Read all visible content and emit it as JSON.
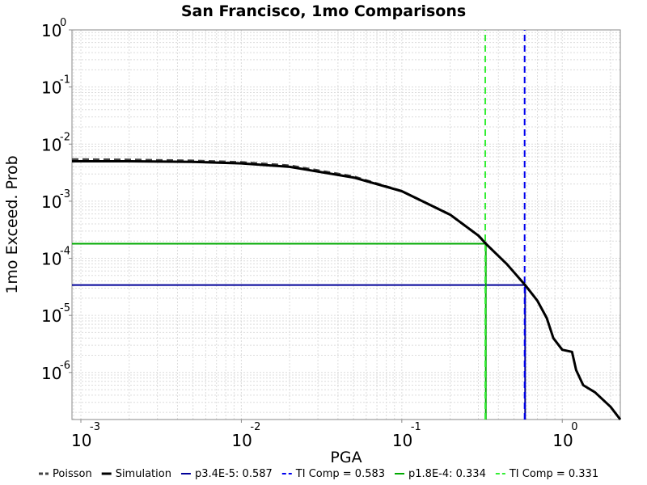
{
  "chart_data": {
    "type": "line",
    "title": "San Francisco, 1mo Comparisons",
    "xlabel": "PGA",
    "ylabel": "1mo Exceed. Prob",
    "x_scale": "log",
    "y_scale": "log",
    "xlim": [
      0.00088,
      2.3
    ],
    "ylim": [
      1.5e-07,
      1
    ],
    "grid": true,
    "legend_position": "bottom",
    "x_ticks": [
      {
        "base": "10",
        "exp": "-3",
        "value": 0.001
      },
      {
        "base": "10",
        "exp": "-2",
        "value": 0.01
      },
      {
        "base": "10",
        "exp": "-1",
        "value": 0.1
      },
      {
        "base": "10",
        "exp": "0",
        "value": 1
      }
    ],
    "y_ticks": [
      {
        "base": "10",
        "exp": "0",
        "value": 1
      },
      {
        "base": "10",
        "exp": "-1",
        "value": 0.1
      },
      {
        "base": "10",
        "exp": "-2",
        "value": 0.01
      },
      {
        "base": "10",
        "exp": "-3",
        "value": 0.001
      },
      {
        "base": "10",
        "exp": "-4",
        "value": 0.0001
      },
      {
        "base": "10",
        "exp": "-5",
        "value": 1e-05
      },
      {
        "base": "10",
        "exp": "-6",
        "value": 1e-06
      }
    ],
    "series": [
      {
        "name": "Poisson",
        "color": "#444444",
        "dash": true,
        "points": [
          [
            0.00088,
            0.0054
          ],
          [
            0.002,
            0.0053
          ],
          [
            0.005,
            0.0051
          ],
          [
            0.01,
            0.0048
          ],
          [
            0.02,
            0.0042
          ],
          [
            0.05,
            0.0027
          ],
          [
            0.1,
            0.0015
          ],
          [
            0.2,
            0.00058
          ],
          [
            0.3,
            0.00025
          ],
          [
            0.334,
            0.000185
          ]
        ]
      },
      {
        "name": "Simulation",
        "color": "#000000",
        "dash": false,
        "points": [
          [
            0.00088,
            0.005
          ],
          [
            0.002,
            0.005
          ],
          [
            0.005,
            0.0049
          ],
          [
            0.01,
            0.0046
          ],
          [
            0.02,
            0.004
          ],
          [
            0.05,
            0.0026
          ],
          [
            0.1,
            0.0015
          ],
          [
            0.2,
            0.00058
          ],
          [
            0.3,
            0.00025
          ],
          [
            0.334,
            0.00018
          ],
          [
            0.45,
            8e-05
          ],
          [
            0.587,
            3.4e-05
          ],
          [
            0.7,
            1.8e-05
          ],
          [
            0.8,
            9e-06
          ],
          [
            0.88,
            4e-06
          ],
          [
            1.0,
            2.5e-06
          ],
          [
            1.15,
            2.3e-06
          ],
          [
            1.22,
            1.1e-06
          ],
          [
            1.35,
            6e-07
          ],
          [
            1.6,
            4.5e-07
          ],
          [
            2.0,
            2.5e-07
          ],
          [
            2.3,
            1.5e-07
          ]
        ]
      },
      {
        "name": "p3.4E-5: 0.587",
        "color": "#000099",
        "dash": false,
        "points": [
          [
            0.00088,
            3.4e-05
          ],
          [
            0.587,
            3.4e-05
          ],
          [
            0.587,
            1.5e-07
          ]
        ]
      },
      {
        "name": "TI Comp = 0.583",
        "color": "#0000ee",
        "dash": true,
        "points": [
          [
            0.583,
            1.5e-07
          ],
          [
            0.583,
            1
          ]
        ]
      },
      {
        "name": "p1.8E-4: 0.334",
        "color": "#00aa00",
        "dash": false,
        "points": [
          [
            0.00088,
            0.00018
          ],
          [
            0.334,
            0.00018
          ],
          [
            0.334,
            1.5e-07
          ]
        ]
      },
      {
        "name": "TI Comp = 0.331",
        "color": "#33ee33",
        "dash": true,
        "points": [
          [
            0.331,
            1.5e-07
          ],
          [
            0.331,
            1
          ]
        ]
      }
    ]
  }
}
